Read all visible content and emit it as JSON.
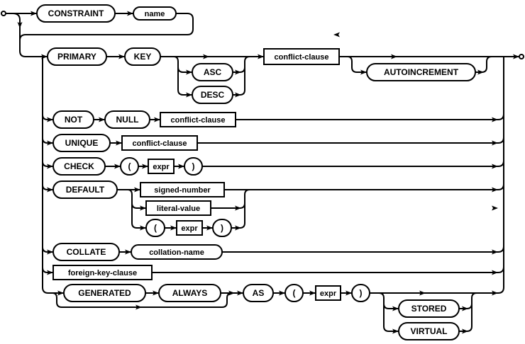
{
  "diagram": {
    "colors": {
      "line": "#000000",
      "background": "#ffffff"
    },
    "nodes": {
      "constraint": {
        "label": "CONSTRAINT",
        "kind": "terminal"
      },
      "name": {
        "label": "name",
        "kind": "terminal"
      },
      "primary": {
        "label": "PRIMARY",
        "kind": "terminal"
      },
      "key": {
        "label": "KEY",
        "kind": "terminal"
      },
      "asc": {
        "label": "ASC",
        "kind": "terminal"
      },
      "desc": {
        "label": "DESC",
        "kind": "terminal"
      },
      "pk_conflict": {
        "label": "conflict-clause",
        "kind": "nonterminal"
      },
      "autoincrement": {
        "label": "AUTOINCREMENT",
        "kind": "terminal"
      },
      "not": {
        "label": "NOT",
        "kind": "terminal"
      },
      "null": {
        "label": "NULL",
        "kind": "terminal"
      },
      "nn_conflict": {
        "label": "conflict-clause",
        "kind": "nonterminal"
      },
      "unique": {
        "label": "UNIQUE",
        "kind": "terminal"
      },
      "uq_conflict": {
        "label": "conflict-clause",
        "kind": "nonterminal"
      },
      "check": {
        "label": "CHECK",
        "kind": "terminal"
      },
      "check_lparen": {
        "label": "(",
        "kind": "terminal"
      },
      "check_expr": {
        "label": "expr",
        "kind": "nonterminal"
      },
      "check_rparen": {
        "label": ")",
        "kind": "terminal"
      },
      "default": {
        "label": "DEFAULT",
        "kind": "terminal"
      },
      "signed_number": {
        "label": "signed-number",
        "kind": "nonterminal"
      },
      "literal_value": {
        "label": "literal-value",
        "kind": "nonterminal"
      },
      "def_lparen": {
        "label": "(",
        "kind": "terminal"
      },
      "def_expr": {
        "label": "expr",
        "kind": "nonterminal"
      },
      "def_rparen": {
        "label": ")",
        "kind": "terminal"
      },
      "collate": {
        "label": "COLLATE",
        "kind": "terminal"
      },
      "collation_name": {
        "label": "collation-name",
        "kind": "terminal"
      },
      "foreign_key_clause": {
        "label": "foreign-key-clause",
        "kind": "nonterminal"
      },
      "generated": {
        "label": "GENERATED",
        "kind": "terminal"
      },
      "always": {
        "label": "ALWAYS",
        "kind": "terminal"
      },
      "as": {
        "label": "AS",
        "kind": "terminal"
      },
      "gen_lparen": {
        "label": "(",
        "kind": "terminal"
      },
      "gen_expr": {
        "label": "expr",
        "kind": "nonterminal"
      },
      "gen_rparen": {
        "label": ")",
        "kind": "terminal"
      },
      "stored": {
        "label": "STORED",
        "kind": "terminal"
      },
      "virtual": {
        "label": "VIRTUAL",
        "kind": "terminal"
      }
    }
  }
}
